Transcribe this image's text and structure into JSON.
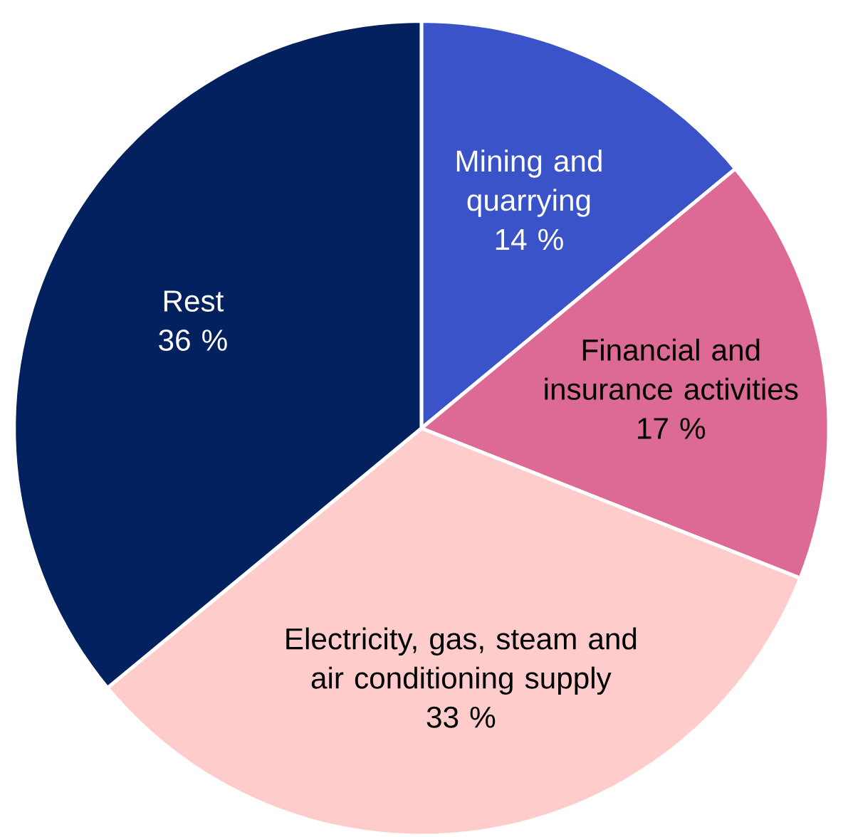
{
  "chart_data": {
    "type": "pie",
    "categories": [
      "Mining and quarrying",
      "Financial and insurance activities",
      "Electricity, gas, steam and air conditioning supply",
      "Rest"
    ],
    "values": [
      14,
      17,
      33,
      36
    ],
    "value_labels": [
      "14 %",
      "17 %",
      "33 %",
      "36 %"
    ],
    "colors": [
      "#3a53c8",
      "#dc6a95",
      "#ffcccc",
      "#03215e"
    ]
  }
}
